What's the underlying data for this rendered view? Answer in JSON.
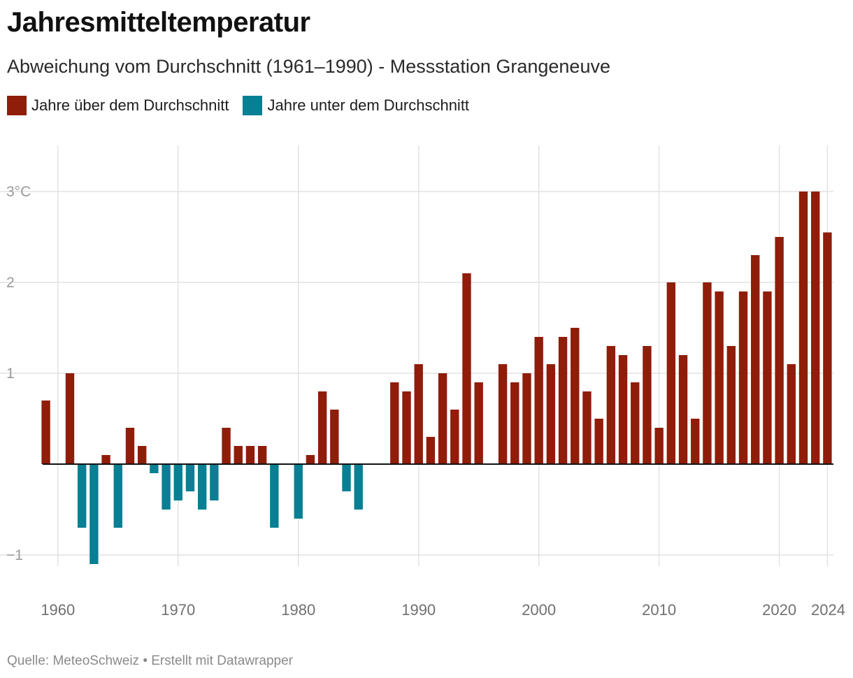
{
  "header": {
    "title": "Jahresmitteltemperatur",
    "subtitle": "Abweichung vom Durchschnitt (1961–1990) - Messstation Grangeneuve"
  },
  "legend": {
    "items": [
      {
        "label": "Jahre über dem Durchschnitt",
        "color": "#8f1d0a"
      },
      {
        "label": "Jahre unter dem Durchschnitt",
        "color": "#087f93"
      }
    ]
  },
  "footer": {
    "source": "Quelle: MeteoSchweiz • Erstellt mit Datawrapper"
  },
  "chart_data": {
    "type": "bar",
    "title": "Jahresmitteltemperatur",
    "subtitle": "Abweichung vom Durchschnitt (1961–1990) - Messstation Grangeneuve",
    "xlabel": "",
    "ylabel": "",
    "ylim": [
      -1.1,
      3.5
    ],
    "xlim": [
      1958.5,
      2024.5
    ],
    "yticks": [
      -1,
      1,
      2,
      3
    ],
    "ytick_labels": [
      "−1",
      "1",
      "2",
      "3°C"
    ],
    "xticks": [
      1960,
      1970,
      1980,
      1990,
      2000,
      2010,
      2020,
      2024
    ],
    "xtick_labels": [
      "1960",
      "1970",
      "1980",
      "1990",
      "2000",
      "2010",
      "2020",
      "2024"
    ],
    "colors": {
      "positive": "#8f1d0a",
      "negative": "#087f93"
    },
    "years": [
      1959,
      1960,
      1961,
      1962,
      1963,
      1964,
      1965,
      1966,
      1967,
      1968,
      1969,
      1970,
      1971,
      1972,
      1973,
      1974,
      1975,
      1976,
      1977,
      1978,
      1979,
      1980,
      1981,
      1982,
      1983,
      1984,
      1985,
      1986,
      1987,
      1988,
      1989,
      1990,
      1991,
      1992,
      1993,
      1994,
      1995,
      1996,
      1997,
      1998,
      1999,
      2000,
      2001,
      2002,
      2003,
      2004,
      2005,
      2006,
      2007,
      2008,
      2009,
      2010,
      2011,
      2012,
      2013,
      2014,
      2015,
      2016,
      2017,
      2018,
      2019,
      2020,
      2021,
      2022,
      2023,
      2024
    ],
    "values": [
      0.7,
      0.0,
      1.0,
      -0.7,
      -1.1,
      0.1,
      -0.7,
      0.4,
      0.2,
      -0.1,
      -0.5,
      -0.4,
      -0.3,
      -0.5,
      -0.4,
      0.4,
      0.2,
      0.2,
      0.2,
      -0.7,
      0.0,
      -0.6,
      0.1,
      0.8,
      0.6,
      -0.3,
      -0.5,
      0.0,
      0.0,
      0.9,
      0.8,
      1.1,
      0.3,
      1.0,
      0.6,
      2.1,
      0.9,
      0.0,
      1.1,
      0.9,
      1.0,
      1.4,
      1.1,
      1.4,
      1.5,
      0.8,
      0.5,
      1.3,
      1.2,
      0.9,
      1.3,
      0.4,
      2.0,
      1.2,
      0.5,
      2.0,
      1.9,
      1.3,
      1.9,
      2.3,
      1.9,
      2.5,
      1.1,
      3.0,
      3.0,
      2.55
    ]
  }
}
